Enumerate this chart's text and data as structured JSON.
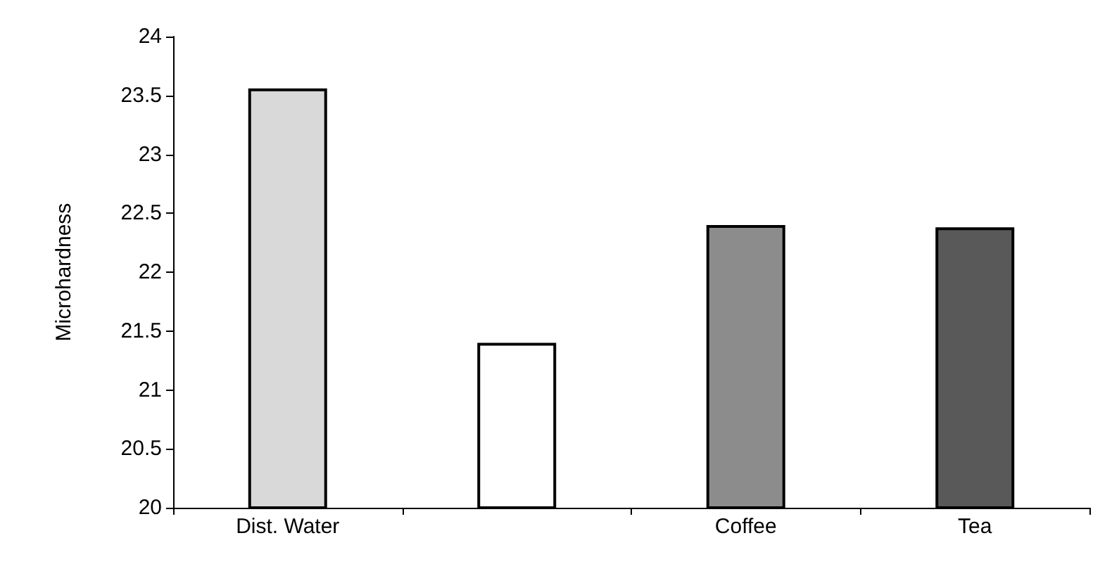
{
  "chart_data": {
    "type": "bar",
    "ylabel": "Microhardness",
    "categories": [
      "Dist. Water",
      null,
      "Coffee",
      "Tea"
    ],
    "values": [
      23.56,
      21.4,
      22.4,
      22.38
    ],
    "colors": [
      "#d9d9d9",
      "#ffffff",
      "#8c8c8c",
      "#595959"
    ],
    "ylim": [
      20,
      24
    ],
    "yticks": [
      20,
      20.5,
      21,
      21.5,
      22,
      22.5,
      23,
      23.5,
      24
    ],
    "grid": false
  }
}
